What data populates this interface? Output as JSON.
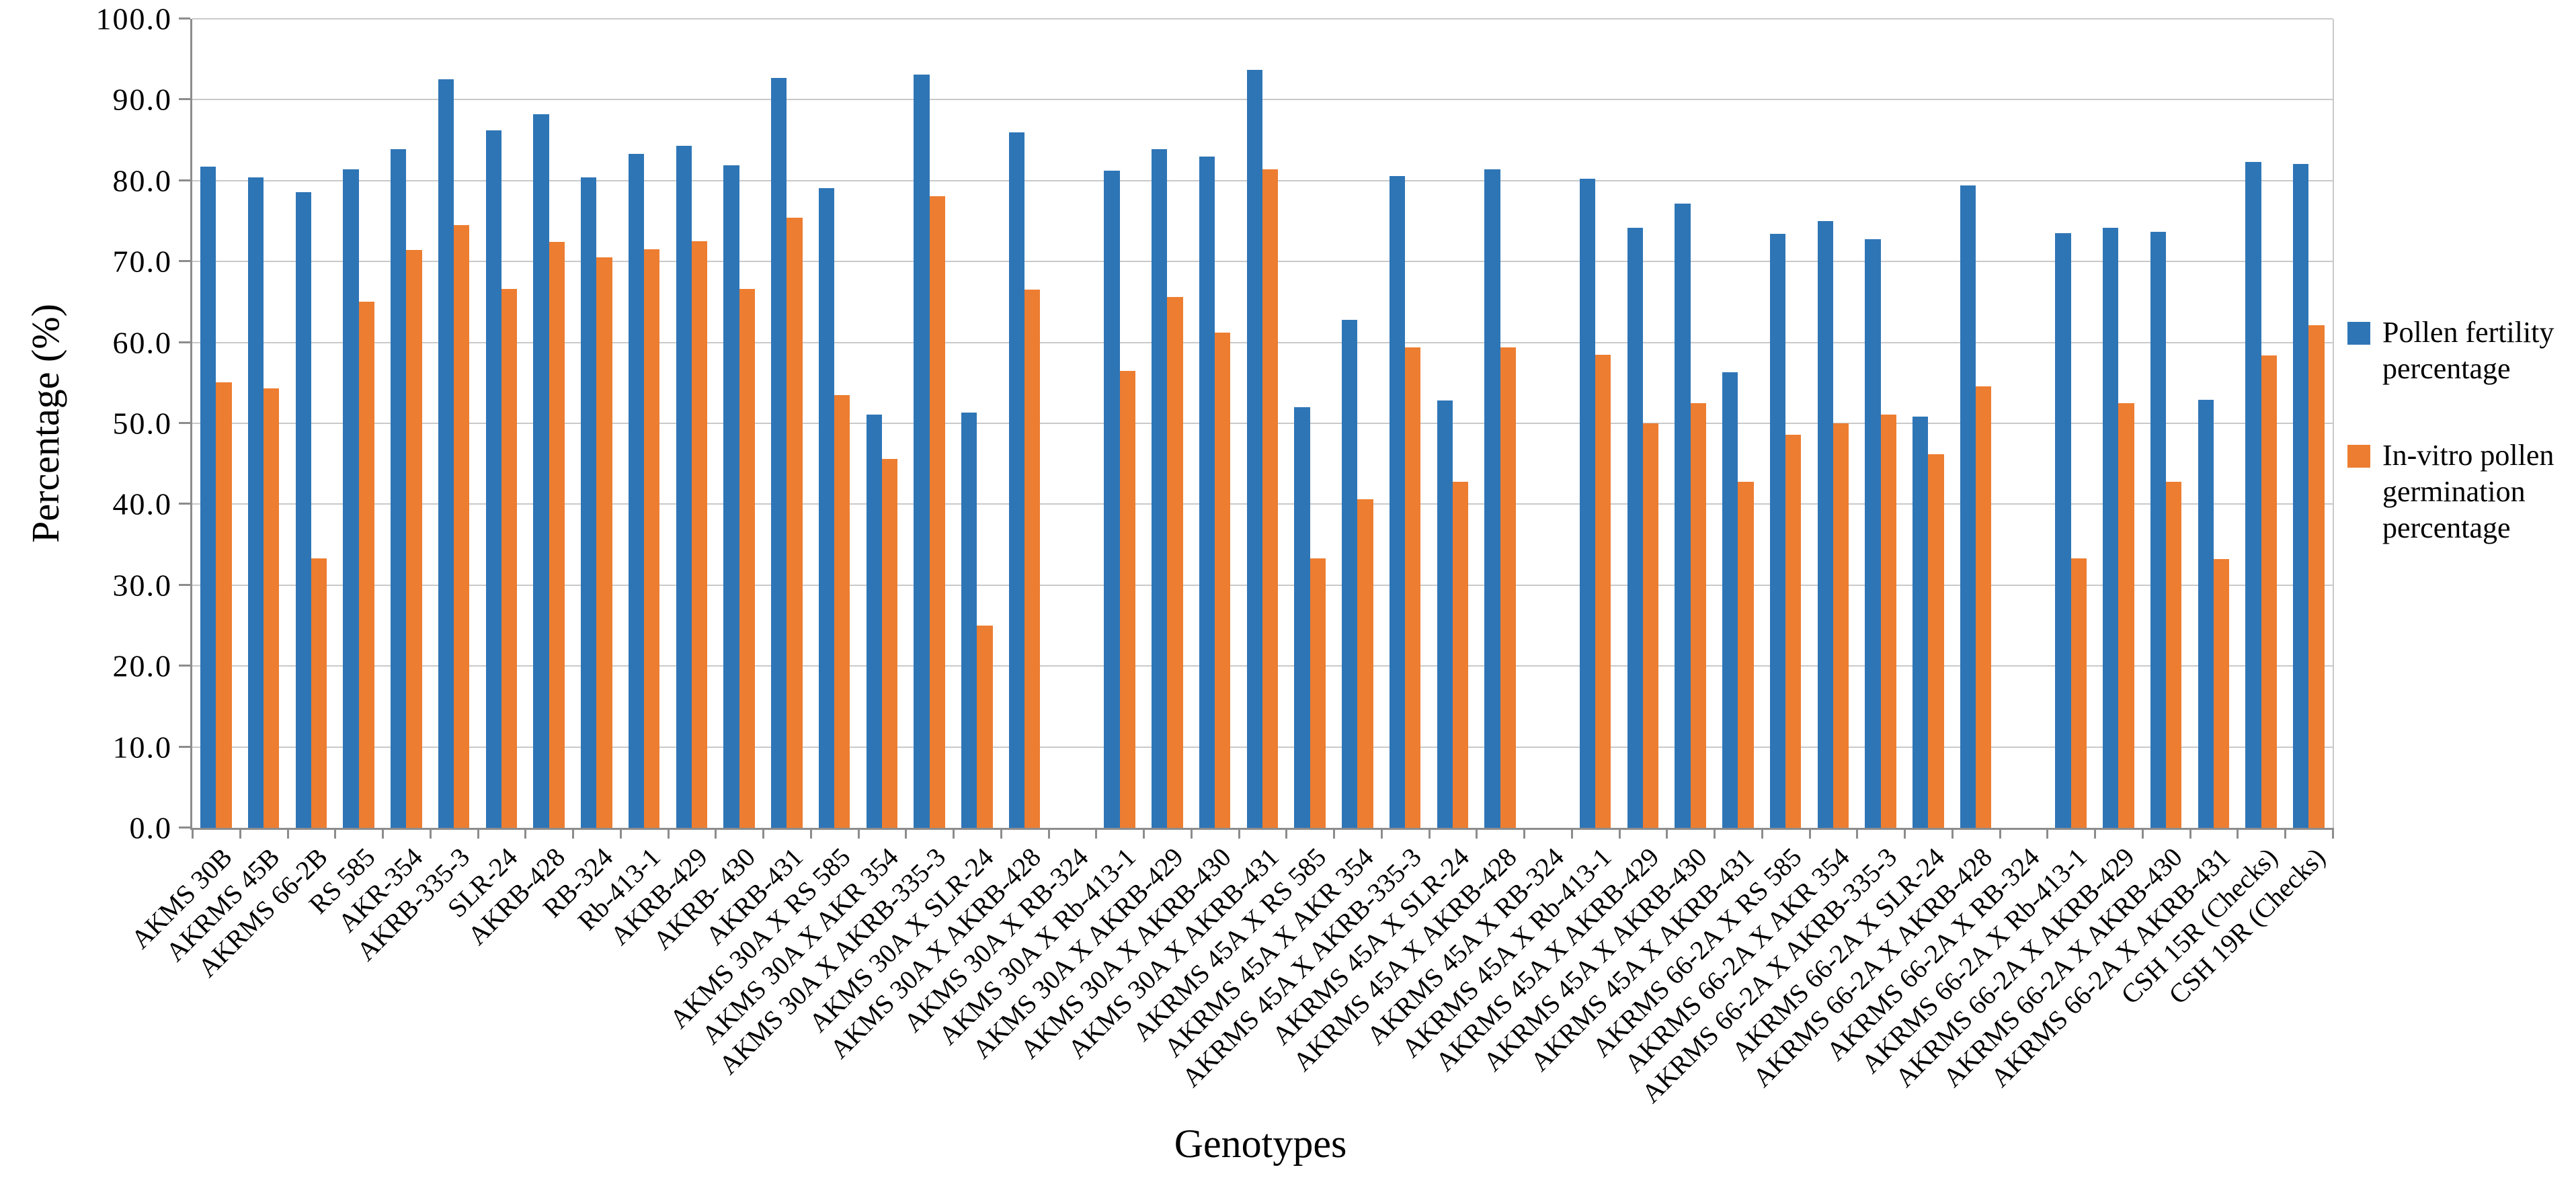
{
  "chart_data": {
    "type": "bar",
    "title": "",
    "xlabel": "Genotypes",
    "ylabel": "Percentage (%)",
    "ylim": [
      0,
      100
    ],
    "ytick_step": 10,
    "ytick_labels": [
      "0.0",
      "10.0",
      "20.0",
      "30.0",
      "40.0",
      "50.0",
      "60.0",
      "70.0",
      "80.0",
      "90.0",
      "100.0"
    ],
    "grid": true,
    "legend_position": "right",
    "categories": [
      "AKMS 30B",
      "AKRMS 45B",
      "AKRMS 66-2B",
      "RS 585",
      "AKR-354",
      "AKRB-335-3",
      "SLR-24",
      "AKRB-428",
      "RB-324",
      "Rb-413-1",
      "AKRB-429",
      "AKRB- 430",
      "AKRB-431",
      "AKMS 30A X RS 585",
      "AKMS 30A X AKR 354",
      "AKMS 30A X AKRB-335-3",
      "AKMS 30A X SLR-24",
      "AKMS 30A X AKRB-428",
      "AKMS 30A X RB-324",
      "AKMS 30A X Rb-413-1",
      "AKMS 30A X AKRB-429",
      "AKMS 30A X AKRB-430",
      "AKMS 30A X AKRB-431",
      "AKRMS 45A X RS 585",
      "AKRMS 45A X AKR 354",
      "AKRMS 45A X AKRB-335-3",
      "AKRMS 45A X SLR-24",
      "AKRMS 45A X AKRB-428",
      "AKRMS 45A X RB-324",
      "AKRMS 45A X Rb-413-1",
      "AKRMS 45A X AKRB-429",
      "AKRMS 45A X AKRB-430",
      "AKRMS 45A X AKRB-431",
      "AKRMS 66-2A X RS 585",
      "AKRMS 66-2A X AKR 354",
      "AKRMS 66-2A X AKRB-335-3",
      "AKRMS 66-2A X SLR-24",
      "AKRMS 66-2A X AKRB-428",
      "AKRMS 66-2A X RB-324",
      "AKRMS 66-2A X Rb-413-1",
      "AKRMS 66-2A X AKRB-429",
      "AKRMS 66-2A X AKRB-430",
      "AKRMS 66-2A X AKRB-431",
      "CSH 15R (Checks)",
      "CSH 19R (Checks)"
    ],
    "series": [
      {
        "name": "Pollen fertility percentage",
        "color": "#2E75B6",
        "values": [
          81.7,
          80.4,
          78.6,
          81.4,
          83.9,
          92.5,
          86.2,
          88.2,
          80.4,
          83.3,
          84.3,
          81.9,
          92.7,
          79.1,
          51.1,
          93.1,
          51.3,
          86.0,
          null,
          81.2,
          83.9,
          83.0,
          93.7,
          52.0,
          62.8,
          80.6,
          52.8,
          81.4,
          null,
          80.2,
          74.2,
          77.2,
          56.3,
          73.4,
          75.0,
          72.8,
          50.8,
          79.4,
          null,
          73.5,
          74.2,
          73.7,
          52.9,
          82.3,
          82.1
        ]
      },
      {
        "name": "In-vitro pollen germination percentage",
        "color": "#ED7D31",
        "values": [
          55.1,
          54.3,
          33.3,
          65.0,
          71.4,
          74.5,
          66.6,
          72.4,
          70.5,
          71.5,
          72.5,
          66.6,
          75.4,
          53.5,
          45.6,
          78.1,
          25.0,
          66.5,
          null,
          56.5,
          65.6,
          61.2,
          81.4,
          33.3,
          40.6,
          59.4,
          42.8,
          59.4,
          null,
          58.5,
          50.0,
          52.5,
          42.8,
          48.6,
          50.0,
          51.1,
          46.2,
          54.6,
          null,
          33.3,
          52.5,
          42.8,
          33.2,
          58.4,
          62.1
        ]
      }
    ]
  }
}
